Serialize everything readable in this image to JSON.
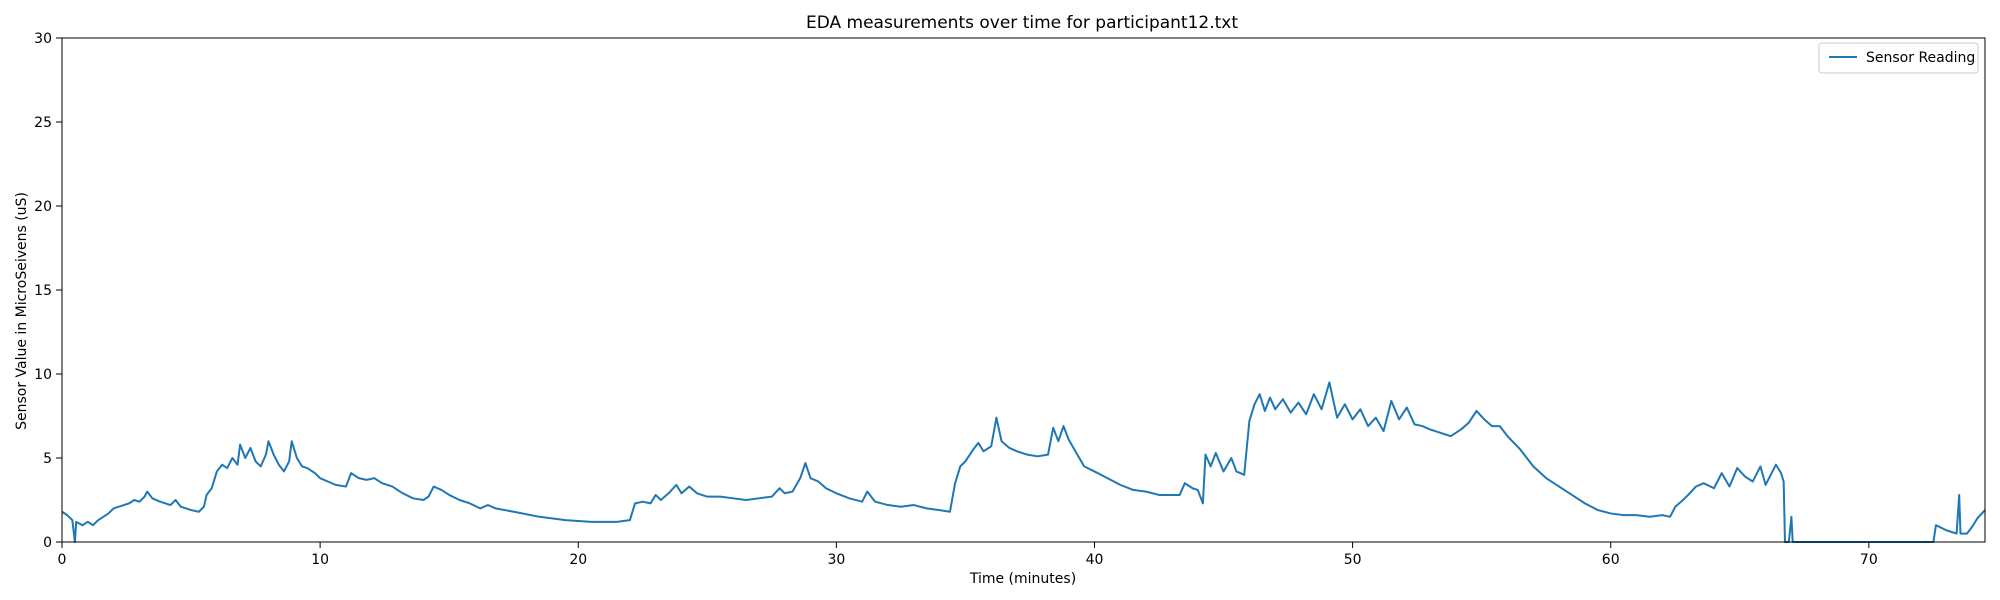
{
  "chart_data": {
    "type": "line",
    "title": "EDA measurements over time for participant12.txt",
    "xlabel": "Time (minutes)",
    "ylabel": "Sensor Value in MicroSeivens (uS)",
    "xlim": [
      0,
      74.5
    ],
    "ylim": [
      0,
      30
    ],
    "xticks": [
      0,
      10,
      20,
      30,
      40,
      50,
      60,
      70
    ],
    "yticks": [
      0,
      5,
      10,
      15,
      20,
      25,
      30
    ],
    "grid": false,
    "legend": {
      "placement": "top-right",
      "entries": [
        "Sensor Reading"
      ]
    },
    "series": [
      {
        "name": "Sensor Reading",
        "color": "#1f77b4",
        "points": [
          [
            0.0,
            1.8
          ],
          [
            0.2,
            1.6
          ],
          [
            0.4,
            1.3
          ],
          [
            0.5,
            0.0
          ],
          [
            0.55,
            1.2
          ],
          [
            0.8,
            1.0
          ],
          [
            1.0,
            1.2
          ],
          [
            1.2,
            1.0
          ],
          [
            1.4,
            1.3
          ],
          [
            1.6,
            1.5
          ],
          [
            1.8,
            1.7
          ],
          [
            2.0,
            2.0
          ],
          [
            2.2,
            2.1
          ],
          [
            2.4,
            2.2
          ],
          [
            2.6,
            2.3
          ],
          [
            2.8,
            2.5
          ],
          [
            3.0,
            2.4
          ],
          [
            3.2,
            2.7
          ],
          [
            3.3,
            3.0
          ],
          [
            3.5,
            2.6
          ],
          [
            3.8,
            2.4
          ],
          [
            4.0,
            2.3
          ],
          [
            4.2,
            2.2
          ],
          [
            4.4,
            2.5
          ],
          [
            4.6,
            2.1
          ],
          [
            5.0,
            1.9
          ],
          [
            5.3,
            1.8
          ],
          [
            5.5,
            2.1
          ],
          [
            5.6,
            2.8
          ],
          [
            5.8,
            3.2
          ],
          [
            6.0,
            4.2
          ],
          [
            6.2,
            4.6
          ],
          [
            6.4,
            4.4
          ],
          [
            6.6,
            5.0
          ],
          [
            6.8,
            4.6
          ],
          [
            6.9,
            5.8
          ],
          [
            7.1,
            5.0
          ],
          [
            7.3,
            5.6
          ],
          [
            7.5,
            4.8
          ],
          [
            7.7,
            4.5
          ],
          [
            7.9,
            5.2
          ],
          [
            8.0,
            6.0
          ],
          [
            8.2,
            5.2
          ],
          [
            8.4,
            4.6
          ],
          [
            8.6,
            4.2
          ],
          [
            8.8,
            4.8
          ],
          [
            8.9,
            6.0
          ],
          [
            9.1,
            5.0
          ],
          [
            9.3,
            4.5
          ],
          [
            9.5,
            4.4
          ],
          [
            9.8,
            4.1
          ],
          [
            10.0,
            3.8
          ],
          [
            10.3,
            3.6
          ],
          [
            10.6,
            3.4
          ],
          [
            11.0,
            3.3
          ],
          [
            11.2,
            4.1
          ],
          [
            11.5,
            3.8
          ],
          [
            11.8,
            3.7
          ],
          [
            12.1,
            3.8
          ],
          [
            12.4,
            3.5
          ],
          [
            12.8,
            3.3
          ],
          [
            13.2,
            2.9
          ],
          [
            13.6,
            2.6
          ],
          [
            14.0,
            2.5
          ],
          [
            14.2,
            2.7
          ],
          [
            14.4,
            3.3
          ],
          [
            14.7,
            3.1
          ],
          [
            15.0,
            2.8
          ],
          [
            15.4,
            2.5
          ],
          [
            15.8,
            2.3
          ],
          [
            16.2,
            2.0
          ],
          [
            16.5,
            2.2
          ],
          [
            16.8,
            2.0
          ],
          [
            17.5,
            1.8
          ],
          [
            18.5,
            1.5
          ],
          [
            19.5,
            1.3
          ],
          [
            20.5,
            1.2
          ],
          [
            21.5,
            1.2
          ],
          [
            22.0,
            1.3
          ],
          [
            22.2,
            2.3
          ],
          [
            22.5,
            2.4
          ],
          [
            22.8,
            2.3
          ],
          [
            23.0,
            2.8
          ],
          [
            23.2,
            2.5
          ],
          [
            23.5,
            2.9
          ],
          [
            23.8,
            3.4
          ],
          [
            24.0,
            2.9
          ],
          [
            24.3,
            3.3
          ],
          [
            24.6,
            2.9
          ],
          [
            25.0,
            2.7
          ],
          [
            25.5,
            2.7
          ],
          [
            26.0,
            2.6
          ],
          [
            26.5,
            2.5
          ],
          [
            27.0,
            2.6
          ],
          [
            27.5,
            2.7
          ],
          [
            27.8,
            3.2
          ],
          [
            28.0,
            2.9
          ],
          [
            28.3,
            3.0
          ],
          [
            28.6,
            3.8
          ],
          [
            28.8,
            4.7
          ],
          [
            29.0,
            3.8
          ],
          [
            29.3,
            3.6
          ],
          [
            29.6,
            3.2
          ],
          [
            30.0,
            2.9
          ],
          [
            30.5,
            2.6
          ],
          [
            31.0,
            2.4
          ],
          [
            31.2,
            3.0
          ],
          [
            31.5,
            2.4
          ],
          [
            32.0,
            2.2
          ],
          [
            32.5,
            2.1
          ],
          [
            33.0,
            2.2
          ],
          [
            33.5,
            2.0
          ],
          [
            34.0,
            1.9
          ],
          [
            34.4,
            1.8
          ],
          [
            34.6,
            3.5
          ],
          [
            34.8,
            4.5
          ],
          [
            35.0,
            4.8
          ],
          [
            35.3,
            5.5
          ],
          [
            35.5,
            5.9
          ],
          [
            35.7,
            5.4
          ],
          [
            36.0,
            5.7
          ],
          [
            36.2,
            7.4
          ],
          [
            36.4,
            6.0
          ],
          [
            36.7,
            5.6
          ],
          [
            37.0,
            5.4
          ],
          [
            37.4,
            5.2
          ],
          [
            37.8,
            5.1
          ],
          [
            38.2,
            5.2
          ],
          [
            38.4,
            6.8
          ],
          [
            38.6,
            6.0
          ],
          [
            38.8,
            6.9
          ],
          [
            39.0,
            6.1
          ],
          [
            39.3,
            5.3
          ],
          [
            39.6,
            4.5
          ],
          [
            40.0,
            4.2
          ],
          [
            40.5,
            3.8
          ],
          [
            41.0,
            3.4
          ],
          [
            41.5,
            3.1
          ],
          [
            42.0,
            3.0
          ],
          [
            42.5,
            2.8
          ],
          [
            43.0,
            2.8
          ],
          [
            43.3,
            2.8
          ],
          [
            43.5,
            3.5
          ],
          [
            43.8,
            3.2
          ],
          [
            44.0,
            3.1
          ],
          [
            44.2,
            2.3
          ],
          [
            44.3,
            5.2
          ],
          [
            44.5,
            4.5
          ],
          [
            44.7,
            5.3
          ],
          [
            45.0,
            4.2
          ],
          [
            45.3,
            5.0
          ],
          [
            45.5,
            4.2
          ],
          [
            45.8,
            4.0
          ],
          [
            46.0,
            7.2
          ],
          [
            46.2,
            8.2
          ],
          [
            46.4,
            8.8
          ],
          [
            46.6,
            7.8
          ],
          [
            46.8,
            8.6
          ],
          [
            47.0,
            7.9
          ],
          [
            47.3,
            8.5
          ],
          [
            47.6,
            7.7
          ],
          [
            47.9,
            8.3
          ],
          [
            48.2,
            7.6
          ],
          [
            48.5,
            8.8
          ],
          [
            48.8,
            7.9
          ],
          [
            49.1,
            9.5
          ],
          [
            49.4,
            7.4
          ],
          [
            49.7,
            8.2
          ],
          [
            50.0,
            7.3
          ],
          [
            50.3,
            7.9
          ],
          [
            50.6,
            6.9
          ],
          [
            50.9,
            7.4
          ],
          [
            51.2,
            6.6
          ],
          [
            51.5,
            8.4
          ],
          [
            51.8,
            7.3
          ],
          [
            52.1,
            8.0
          ],
          [
            52.4,
            7.0
          ],
          [
            52.7,
            6.9
          ],
          [
            53.0,
            6.7
          ],
          [
            53.4,
            6.5
          ],
          [
            53.8,
            6.3
          ],
          [
            54.2,
            6.7
          ],
          [
            54.5,
            7.1
          ],
          [
            54.8,
            7.8
          ],
          [
            55.1,
            7.3
          ],
          [
            55.4,
            6.9
          ],
          [
            55.7,
            6.9
          ],
          [
            56.0,
            6.3
          ],
          [
            56.5,
            5.5
          ],
          [
            57.0,
            4.5
          ],
          [
            57.5,
            3.8
          ],
          [
            58.0,
            3.3
          ],
          [
            58.5,
            2.8
          ],
          [
            59.0,
            2.3
          ],
          [
            59.5,
            1.9
          ],
          [
            60.0,
            1.7
          ],
          [
            60.5,
            1.6
          ],
          [
            61.0,
            1.6
          ],
          [
            61.5,
            1.5
          ],
          [
            62.0,
            1.6
          ],
          [
            62.3,
            1.5
          ],
          [
            62.5,
            2.1
          ],
          [
            62.8,
            2.5
          ],
          [
            63.0,
            2.8
          ],
          [
            63.3,
            3.3
          ],
          [
            63.6,
            3.5
          ],
          [
            64.0,
            3.2
          ],
          [
            64.3,
            4.1
          ],
          [
            64.6,
            3.3
          ],
          [
            64.9,
            4.4
          ],
          [
            65.2,
            3.9
          ],
          [
            65.5,
            3.6
          ],
          [
            65.8,
            4.5
          ],
          [
            66.0,
            3.4
          ],
          [
            66.2,
            4.0
          ],
          [
            66.4,
            4.6
          ],
          [
            66.6,
            4.1
          ],
          [
            66.7,
            3.6
          ],
          [
            66.75,
            0.0
          ],
          [
            66.9,
            0.0
          ],
          [
            67.0,
            1.5
          ],
          [
            67.05,
            0.0
          ],
          [
            68.0,
            0.0
          ],
          [
            70.0,
            0.0
          ],
          [
            72.0,
            0.0
          ],
          [
            72.5,
            0.0
          ],
          [
            72.6,
            1.0
          ],
          [
            73.0,
            0.7
          ],
          [
            73.4,
            0.5
          ],
          [
            73.5,
            2.8
          ],
          [
            73.55,
            0.5
          ],
          [
            73.8,
            0.5
          ],
          [
            74.0,
            0.9
          ],
          [
            74.2,
            1.4
          ],
          [
            74.5,
            1.9
          ]
        ]
      }
    ]
  }
}
